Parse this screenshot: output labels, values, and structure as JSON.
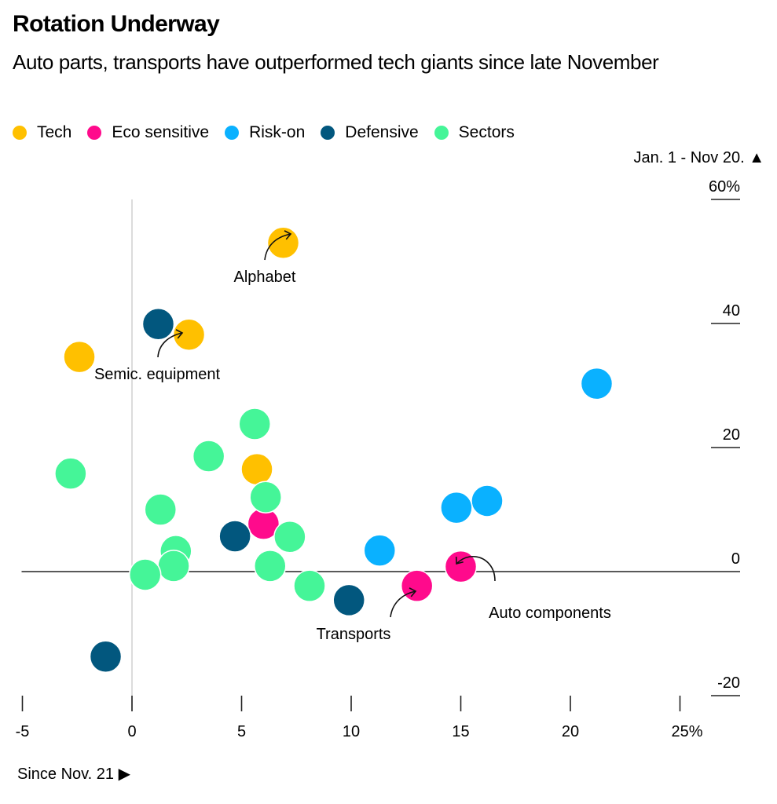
{
  "header": {
    "title": "Rotation Underway",
    "subtitle": "Auto parts, transports have outperformed tech giants since late November"
  },
  "chart_data": {
    "type": "scatter",
    "title": "Rotation Underway",
    "subtitle": "Auto parts, transports have outperformed tech giants since late November",
    "xlabel": "Since Nov. 21 ▶",
    "ylabel": "Jan. 1 - Nov 20. ▲",
    "xlim": [
      -5,
      25
    ],
    "ylim": [
      -20,
      60
    ],
    "x_ticks": [
      {
        "value": -5,
        "label": "-5"
      },
      {
        "value": 0,
        "label": "0"
      },
      {
        "value": 5,
        "label": "5"
      },
      {
        "value": 10,
        "label": "10"
      },
      {
        "value": 15,
        "label": "15"
      },
      {
        "value": 20,
        "label": "20"
      },
      {
        "value": 25,
        "label": "25%"
      }
    ],
    "y_ticks": [
      {
        "value": 60,
        "label": "60%"
      },
      {
        "value": 40,
        "label": "40"
      },
      {
        "value": 20,
        "label": "20"
      },
      {
        "value": 0,
        "label": "0"
      },
      {
        "value": -20,
        "label": "-20"
      }
    ],
    "legend_position": "top-left",
    "grid": false,
    "series": [
      {
        "name": "Tech",
        "color": "#FFC000",
        "points": [
          {
            "x": 6.9,
            "y": 53.0,
            "label": "Alphabet"
          },
          {
            "x": 2.6,
            "y": 38.2,
            "label": "Semic. equipment"
          },
          {
            "x": -2.4,
            "y": 34.6
          },
          {
            "x": 5.7,
            "y": 16.5
          }
        ]
      },
      {
        "name": "Eco sensitive",
        "color": "#FF0A8C",
        "points": [
          {
            "x": 6.0,
            "y": 7.7
          },
          {
            "x": 15.0,
            "y": 0.8,
            "label": "Auto components"
          },
          {
            "x": 13.0,
            "y": -2.3,
            "label": "Transports"
          }
        ]
      },
      {
        "name": "Risk-on",
        "color": "#0AB1FF",
        "points": [
          {
            "x": 21.2,
            "y": 30.3
          },
          {
            "x": 16.2,
            "y": 11.4
          },
          {
            "x": 14.8,
            "y": 10.3
          },
          {
            "x": 11.3,
            "y": 3.4
          }
        ]
      },
      {
        "name": "Defensive",
        "color": "#02577E",
        "points": [
          {
            "x": 1.2,
            "y": 39.9
          },
          {
            "x": 4.7,
            "y": 5.7
          },
          {
            "x": 9.9,
            "y": -4.6
          },
          {
            "x": -1.2,
            "y": -13.7
          }
        ]
      },
      {
        "name": "Sectors",
        "color": "#45F598",
        "points": [
          {
            "x": 5.6,
            "y": 23.8
          },
          {
            "x": 3.5,
            "y": 18.6
          },
          {
            "x": -2.8,
            "y": 15.8
          },
          {
            "x": 6.1,
            "y": 12.0
          },
          {
            "x": 1.3,
            "y": 10.0
          },
          {
            "x": 7.2,
            "y": 5.6
          },
          {
            "x": 2.0,
            "y": 3.3
          },
          {
            "x": 1.9,
            "y": 0.9
          },
          {
            "x": 6.3,
            "y": 0.9
          },
          {
            "x": 0.6,
            "y": -0.5
          },
          {
            "x": 8.1,
            "y": -2.3
          }
        ]
      }
    ],
    "annotations": [
      {
        "text": "Alphabet",
        "series": "Tech",
        "x": 6.9,
        "y": 53.0
      },
      {
        "text": "Semic. equipment",
        "series": "Tech",
        "x": 2.6,
        "y": 38.2
      },
      {
        "text": "Transports",
        "series": "Eco sensitive",
        "x": 13.0,
        "y": -2.3
      },
      {
        "text": "Auto components",
        "series": "Eco sensitive",
        "x": 15.0,
        "y": 0.8
      }
    ]
  }
}
